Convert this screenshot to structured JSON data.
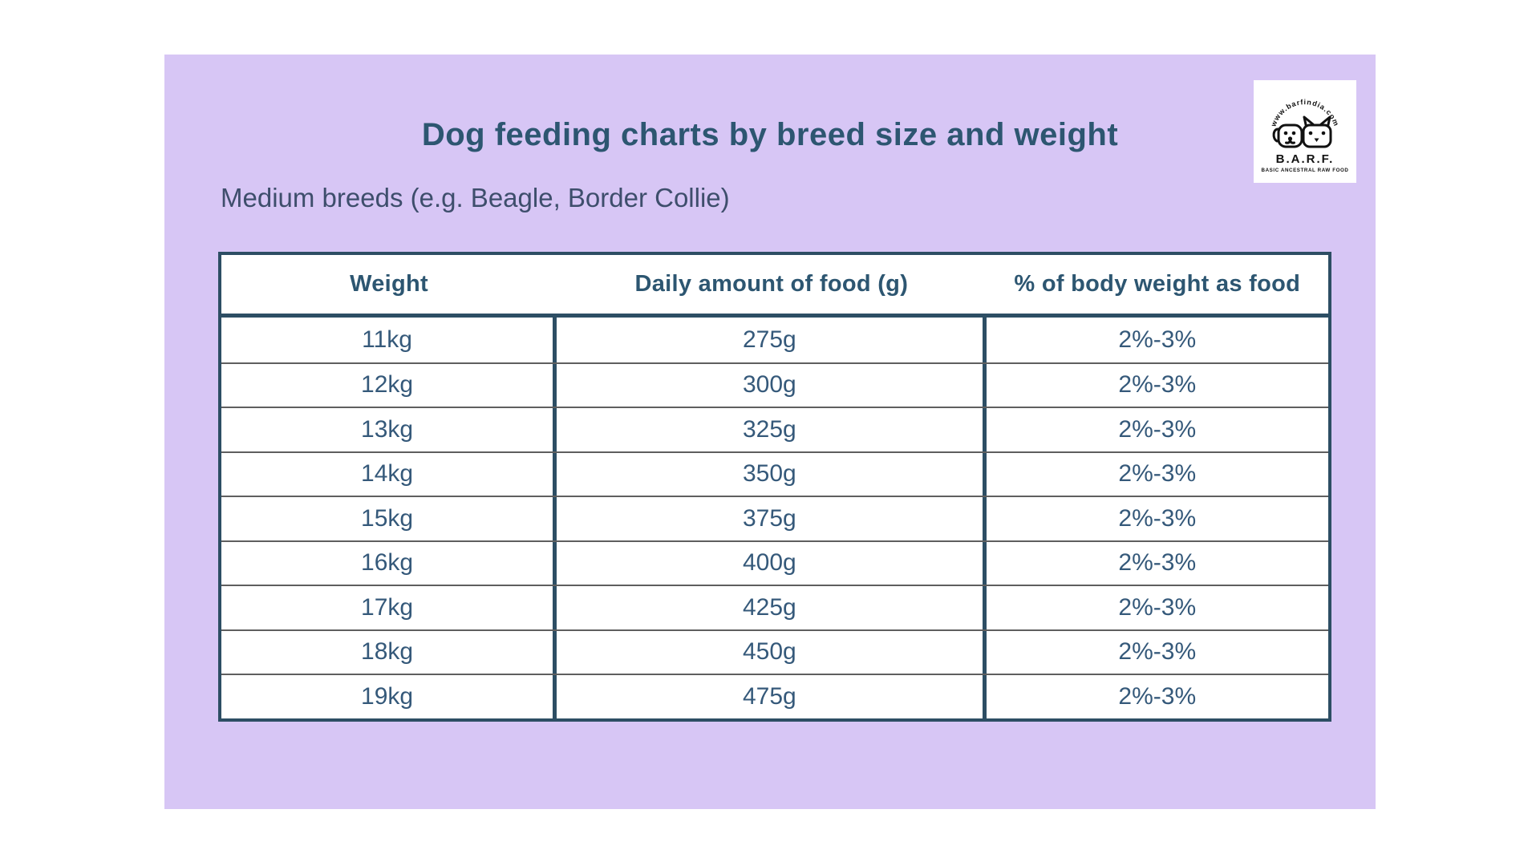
{
  "header": {
    "title": "Dog feeding charts by breed size and weight",
    "subtitle": "Medium breeds (e.g. Beagle, Border Collie)"
  },
  "logo": {
    "url_text": "www.barfindia.com",
    "name": "B.A.R.F.",
    "tagline": "BASIC ANCESTRAL RAW FOOD"
  },
  "colors": {
    "page_background": "#ffffff",
    "card_background": "#d7c6f5",
    "accent_text": "#2d5671",
    "cell_text": "#35597a",
    "subtitle_text": "#3e4e6c",
    "table_border": "#2d4e64",
    "row_divider": "#5f5f5f"
  },
  "chart_data": {
    "type": "table",
    "title": "Dog feeding charts by breed size and weight",
    "subtitle": "Medium breeds (e.g. Beagle, Border Collie)",
    "columns": [
      "Weight",
      "Daily amount of food (g)",
      "% of body weight as food"
    ],
    "rows": [
      [
        "11kg",
        "275g",
        "2%-3%"
      ],
      [
        "12kg",
        "300g",
        "2%-3%"
      ],
      [
        "13kg",
        "325g",
        "2%-3%"
      ],
      [
        "14kg",
        "350g",
        "2%-3%"
      ],
      [
        "15kg",
        "375g",
        "2%-3%"
      ],
      [
        "16kg",
        "400g",
        "2%-3%"
      ],
      [
        "17kg",
        "425g",
        "2%-3%"
      ],
      [
        "18kg",
        "450g",
        "2%-3%"
      ],
      [
        "19kg",
        "475g",
        "2%-3%"
      ]
    ],
    "layout": {
      "grid": "on",
      "header_row": true,
      "columns_count": 3,
      "rows_count": 9
    }
  }
}
